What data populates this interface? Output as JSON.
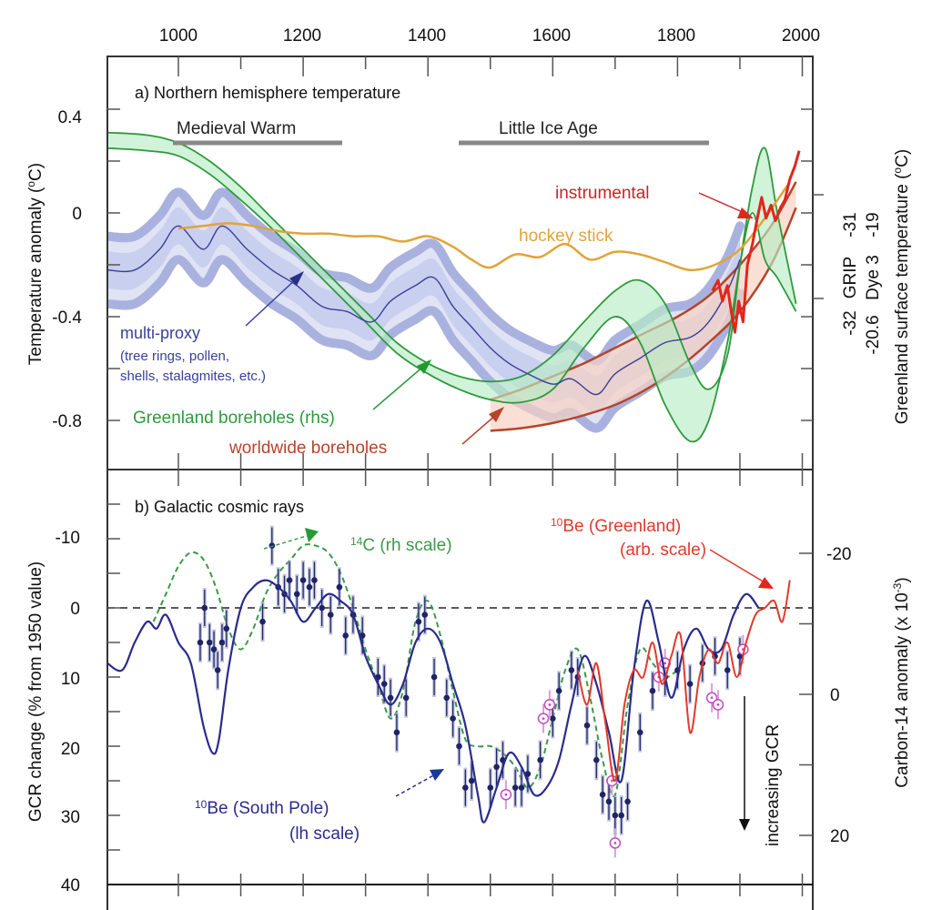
{
  "chart_data": [
    {
      "id": "panel_a",
      "type": "line",
      "title": "a) Northern hemisphere temperature",
      "xlabel": "",
      "ylabel": "Temperature anomaly (°C)",
      "ylabel_right": "Greenland surface temperature (°C)",
      "xlim": [
        886,
        2010
      ],
      "ylim": [
        -1.0,
        0.6
      ],
      "x_ticks": [
        1000,
        1200,
        1400,
        1600,
        1800,
        2000
      ],
      "y_ticks": [
        0.4,
        0,
        -0.4,
        -0.8
      ],
      "y_tick_labels": [
        "0.4",
        "0",
        "-0.4",
        "-0.8"
      ],
      "right_axis": {
        "rows": [
          {
            "name": "GRIP",
            "ticks": [
              "-31",
              "-32"
            ]
          },
          {
            "name": "Dye 3",
            "ticks": [
              "-19",
              "-20.6"
            ]
          }
        ],
        "tick_y_values": [
          0.0,
          -0.4
        ]
      },
      "periods": [
        {
          "label": "Medieval Warm",
          "start": 1000,
          "end": 1270
        },
        {
          "label": "Little Ice Age",
          "start": 1450,
          "end": 1850
        }
      ],
      "series": [
        {
          "name": "multi-proxy",
          "note": "(tree rings, pollen, shells, stalagmites, etc.)",
          "color": "#3a3f9a",
          "band_color": "#a9b2df",
          "x": [
            886,
            930,
            970,
            1000,
            1040,
            1070,
            1110,
            1150,
            1190,
            1230,
            1270,
            1310,
            1340,
            1380,
            1410,
            1440,
            1470,
            1500,
            1530,
            1560,
            1600,
            1630,
            1670,
            1700,
            1740,
            1780,
            1820,
            1850,
            1880,
            1900
          ],
          "values": [
            -0.22,
            -0.22,
            -0.14,
            -0.05,
            -0.14,
            -0.05,
            -0.14,
            -0.22,
            -0.28,
            -0.36,
            -0.38,
            -0.42,
            -0.34,
            -0.28,
            -0.25,
            -0.36,
            -0.44,
            -0.52,
            -0.58,
            -0.62,
            -0.66,
            -0.64,
            -0.7,
            -0.62,
            -0.56,
            -0.5,
            -0.48,
            -0.42,
            -0.3,
            -0.18
          ],
          "band_halfwidth": 0.13
        },
        {
          "name": "hockey stick",
          "color": "#e0a43a",
          "x": [
            1000,
            1040,
            1080,
            1120,
            1160,
            1200,
            1240,
            1280,
            1320,
            1360,
            1400,
            1440,
            1470,
            1500,
            1540,
            1580,
            1620,
            1660,
            1700,
            1740,
            1780,
            1820,
            1860,
            1900,
            1940,
            1980
          ],
          "values": [
            -0.06,
            -0.05,
            -0.04,
            -0.05,
            -0.07,
            -0.08,
            -0.08,
            -0.09,
            -0.09,
            -0.11,
            -0.09,
            -0.13,
            -0.18,
            -0.21,
            -0.16,
            -0.17,
            -0.12,
            -0.18,
            -0.15,
            -0.16,
            -0.19,
            -0.22,
            -0.2,
            -0.14,
            -0.02,
            0.12
          ]
        },
        {
          "name": "Greenland boreholes (rhs)",
          "color": "#2e9a3e",
          "band_color": "#b8ecc4",
          "x": [
            886,
            950,
            1000,
            1050,
            1100,
            1150,
            1200,
            1250,
            1300,
            1350,
            1400,
            1450,
            1500,
            1550,
            1600,
            1650,
            1700,
            1740,
            1780,
            1820,
            1850,
            1880,
            1900,
            1920,
            1940,
            1960,
            1990
          ],
          "upper": [
            0.31,
            0.3,
            0.27,
            0.2,
            0.1,
            -0.02,
            -0.14,
            -0.26,
            -0.38,
            -0.5,
            -0.58,
            -0.63,
            -0.65,
            -0.63,
            -0.55,
            -0.42,
            -0.3,
            -0.26,
            -0.35,
            -0.58,
            -0.68,
            -0.55,
            -0.2,
            0.1,
            0.25,
            0.0,
            -0.35
          ],
          "lower": [
            0.25,
            0.24,
            0.22,
            0.15,
            0.05,
            -0.06,
            -0.18,
            -0.3,
            -0.42,
            -0.54,
            -0.62,
            -0.68,
            -0.72,
            -0.73,
            -0.68,
            -0.52,
            -0.4,
            -0.5,
            -0.74,
            -0.88,
            -0.8,
            -0.5,
            -0.2,
            0.0,
            -0.18,
            -0.25,
            -0.38
          ]
        },
        {
          "name": "worldwide boreholes",
          "color": "#b5452a",
          "band_color": "#f6d2c2",
          "x": [
            1500,
            1550,
            1600,
            1650,
            1700,
            1750,
            1800,
            1850,
            1900,
            1950,
            1990
          ],
          "upper": [
            -0.72,
            -0.68,
            -0.63,
            -0.58,
            -0.52,
            -0.46,
            -0.4,
            -0.32,
            -0.2,
            -0.05,
            0.12
          ],
          "lower": [
            -0.84,
            -0.83,
            -0.81,
            -0.78,
            -0.74,
            -0.68,
            -0.6,
            -0.5,
            -0.38,
            -0.2,
            0.02
          ]
        },
        {
          "name": "instrumental",
          "color": "#e0261f",
          "x": [
            1856,
            1865,
            1872,
            1880,
            1886,
            1892,
            1898,
            1905,
            1912,
            1920,
            1928,
            1935,
            1942,
            1950,
            1957,
            1965,
            1972,
            1980,
            1988,
            1995
          ],
          "values": [
            -0.3,
            -0.26,
            -0.34,
            -0.28,
            -0.38,
            -0.46,
            -0.34,
            -0.42,
            -0.2,
            -0.12,
            -0.02,
            0.06,
            -0.02,
            0.03,
            -0.03,
            0.02,
            0.05,
            0.13,
            0.18,
            0.24
          ]
        }
      ],
      "annotations": [
        "multi-proxy",
        "(tree rings, pollen,",
        "shells, stalagmites, etc.)",
        "Greenland boreholes (rhs)",
        "worldwide boreholes",
        "hockey stick",
        "instrumental"
      ]
    },
    {
      "id": "panel_b",
      "type": "line",
      "title": "b) Galactic cosmic rays",
      "xlabel": "",
      "ylabel": "GCR change (% from 1950 value)",
      "ylabel_right": "Carbon-14 anomaly (x 10^-3)",
      "xlim": [
        886,
        2010
      ],
      "ylim": [
        40,
        -19
      ],
      "y_inverted": true,
      "y_ticks": [
        -10,
        0,
        10,
        20,
        30,
        40
      ],
      "y_tick_labels": [
        "-10",
        "0",
        "10",
        "20",
        "30",
        "40"
      ],
      "y_ticks_right": [
        -20,
        0,
        20
      ],
      "y_tick_labels_right": [
        "-20",
        "0",
        "20"
      ],
      "zero_reference_line": 0,
      "arrow_label": "increasing GCR",
      "series": [
        {
          "name": "10Be (South Pole) (lh scale)",
          "color": "#2a2b8c",
          "x": [
            886,
            910,
            930,
            950,
            965,
            980,
            1000,
            1020,
            1040,
            1055,
            1065,
            1080,
            1100,
            1120,
            1140,
            1160,
            1180,
            1200,
            1220,
            1240,
            1260,
            1280,
            1300,
            1320,
            1340,
            1360,
            1380,
            1400,
            1420,
            1440,
            1460,
            1480,
            1490,
            1510,
            1530,
            1550,
            1570,
            1590,
            1610,
            1630,
            1650,
            1670,
            1690,
            1710,
            1730,
            1750,
            1770,
            1790,
            1810,
            1830,
            1850,
            1870,
            1890,
            1910,
            1930
          ],
          "values": [
            8,
            9,
            5,
            2,
            3,
            1,
            5,
            8,
            17,
            21,
            19,
            9,
            0,
            -3,
            -4,
            -3,
            -1,
            2,
            0,
            -2,
            -1,
            1,
            7,
            11,
            14,
            11,
            5,
            3,
            5,
            11,
            17,
            27,
            31,
            26,
            21,
            23,
            27,
            26,
            22,
            14,
            7,
            11,
            18,
            25,
            9,
            -1,
            5,
            13,
            6,
            3,
            6,
            6,
            1,
            -2,
            0
          ]
        },
        {
          "name": "14C (rh scale)",
          "color": "#3a9a48",
          "dashed": true,
          "x": [
            960,
            980,
            1000,
            1020,
            1040,
            1060,
            1080,
            1100,
            1120,
            1140,
            1160,
            1180,
            1200,
            1220,
            1240,
            1260,
            1280,
            1300,
            1320,
            1340,
            1360,
            1380,
            1400,
            1420,
            1440,
            1460,
            1480,
            1500,
            1520,
            1540,
            1560,
            1580,
            1600,
            1620,
            1640,
            1660,
            1680,
            1700,
            1720,
            1740,
            1760,
            1780,
            1800
          ],
          "values": [
            2,
            -2,
            -6,
            -8,
            -7,
            -3,
            3,
            6,
            3,
            -2,
            -5,
            -7,
            -9,
            -9,
            -8,
            -5,
            0,
            6,
            11,
            16,
            12,
            2,
            -1,
            4,
            12,
            19,
            20,
            20,
            21,
            23,
            26,
            23,
            16,
            9,
            6,
            13,
            22,
            27,
            14,
            6,
            8,
            10,
            9
          ]
        },
        {
          "name": "10Be (Greenland) (arb. scale)",
          "color": "#e03a2c",
          "x": [
            1640,
            1655,
            1670,
            1685,
            1700,
            1715,
            1730,
            1745,
            1760,
            1775,
            1790,
            1805,
            1820,
            1835,
            1850,
            1865,
            1880,
            1895,
            1910,
            1925,
            1940,
            1955,
            1968,
            1980
          ],
          "values": [
            9,
            14,
            8,
            17,
            25,
            14,
            9,
            10,
            5,
            11,
            7,
            4,
            18,
            10,
            6,
            8,
            5,
            10,
            5,
            1,
            0,
            -1,
            2,
            -4
          ]
        },
        {
          "name": "10Be data points (filled, with error bars)",
          "color": "#1f2466",
          "marker": "dot",
          "x": [
            1035,
            1042,
            1050,
            1057,
            1063,
            1070,
            1077,
            1135,
            1150,
            1160,
            1170,
            1178,
            1190,
            1200,
            1210,
            1218,
            1230,
            1244,
            1258,
            1268,
            1280,
            1295,
            1320,
            1330,
            1340,
            1350,
            1365,
            1385,
            1395,
            1410,
            1430,
            1440,
            1450,
            1460,
            1470,
            1500,
            1510,
            1520,
            1540,
            1550,
            1560,
            1580,
            1600,
            1610,
            1630,
            1640,
            1655,
            1670,
            1680,
            1690,
            1700,
            1710,
            1720,
            1740,
            1760,
            1780,
            1800,
            1820,
            1840,
            1860,
            1880,
            1900
          ],
          "values": [
            5,
            0,
            5,
            6,
            9,
            5,
            3,
            2,
            -9,
            -3,
            -2,
            -4,
            -2,
            -4,
            -3,
            -4,
            0,
            1,
            -3,
            4,
            1,
            4,
            10,
            11,
            13,
            18,
            13,
            2,
            1,
            10,
            13,
            16,
            20,
            26,
            25,
            26,
            23,
            22,
            26,
            26,
            24,
            22,
            16,
            12,
            9,
            10,
            17,
            22,
            27,
            28,
            30,
            30,
            28,
            18,
            12,
            10,
            9,
            11,
            8,
            7,
            9,
            7
          ]
        },
        {
          "name": "10Be data points (open circles)",
          "color": "#c84ac0",
          "marker": "circle",
          "x": [
            1525,
            1585,
            1595,
            1695,
            1700,
            1770,
            1780,
            1855,
            1865,
            1905
          ],
          "values": [
            27,
            16,
            14,
            25,
            34,
            10,
            8,
            13,
            14,
            6
          ]
        }
      ],
      "annotations": [
        "14C (rh scale)",
        "10Be (Greenland)",
        "(arb. scale)",
        "10Be (South Pole)",
        "(lh scale)",
        "increasing GCR"
      ]
    }
  ],
  "labels": {
    "top_ticks": [
      "1000",
      "1200",
      "1400",
      "1600",
      "1800",
      "2000"
    ],
    "a_title": "a) Northern hemisphere temperature",
    "a_ylabel": "Temperature anomaly (",
    "a_ylabel_unit": "C)",
    "a_ylabel_sup": "o",
    "a_ylabel_right": "Greenland surface temperature (",
    "a_ylabel_right_sup": "o",
    "a_ylabel_right_unit": "C)",
    "medieval": "Medieval Warm",
    "lia": "Little Ice Age",
    "instrumental": "instrumental",
    "hockey": "hockey stick",
    "multiproxy": "multi-proxy",
    "multiproxy_note1": "(tree rings, pollen,",
    "multiproxy_note2": "shells, stalagmites, etc.)",
    "greenland_bh": "Greenland boreholes (rhs)",
    "worldwide_bh": "worldwide boreholes",
    "grip": "GRIP",
    "grip_hi": "-31",
    "grip_lo": "-32",
    "dye": "Dye 3",
    "dye_hi": "-19",
    "dye_lo": "-20.6",
    "a_y": [
      "0.4",
      "0",
      "-0.4",
      "-0.8"
    ],
    "b_title": "b) Galactic cosmic rays",
    "b_ylabel": "GCR change (% from 1950 value)",
    "b_ylabel_right": "Carbon-14 anomaly (x 10",
    "b_ylabel_right_sup": "-3",
    "b_ylabel_right_end": ")",
    "b_y": [
      "-10",
      "0",
      "10",
      "20",
      "30",
      "40"
    ],
    "b_yr": [
      "-20",
      "0",
      "20"
    ],
    "c14_sup": "14",
    "c14": "C (rh scale)",
    "be_gl_sup": "10",
    "be_gl": "Be (Greenland)",
    "be_gl2": "(arb. scale)",
    "be_sp_sup": "10",
    "be_sp": "Be (South Pole)",
    "be_sp2": "(lh scale)",
    "incr": "increasing GCR"
  }
}
